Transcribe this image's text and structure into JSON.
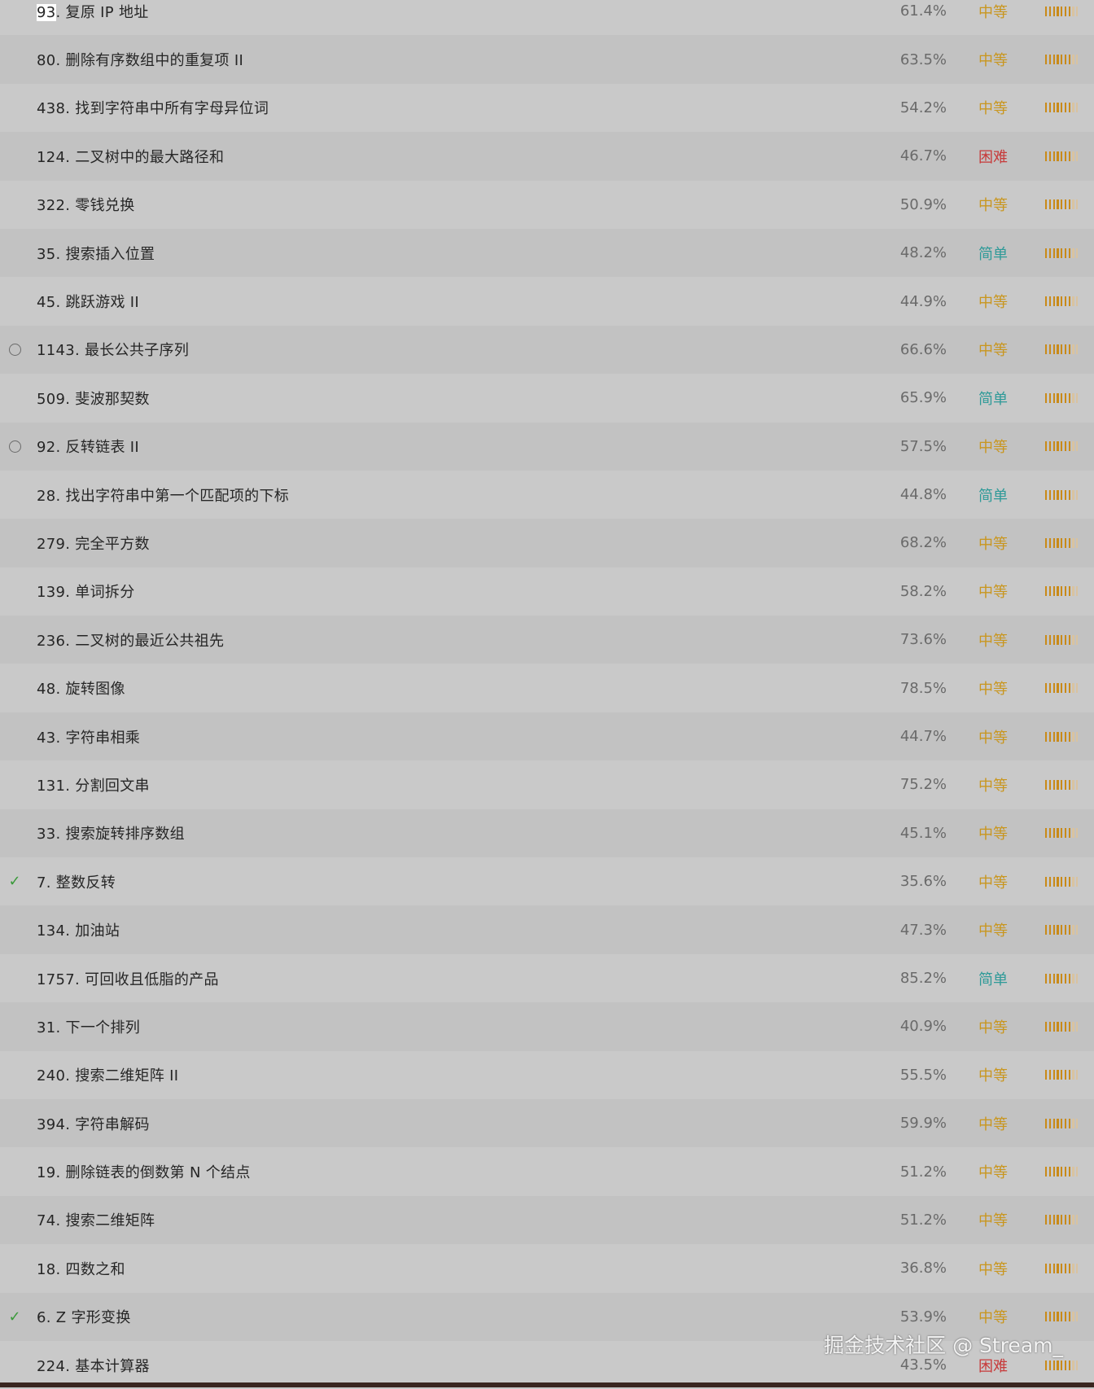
{
  "colors": {
    "medium": "#c9961e",
    "easy": "#2e9a98",
    "hard": "#c73a3a",
    "check": "#3a9a3a"
  },
  "problems": [
    {
      "title": "93. 复原 IP 地址",
      "num": "93",
      "rest": ". 复原 IP 地址",
      "rate": "61.4%",
      "difficulty": "中等",
      "level": "medium",
      "status": ""
    },
    {
      "title": "80. 删除有序数组中的重复项 II",
      "rate": "63.5%",
      "difficulty": "中等",
      "level": "medium",
      "status": ""
    },
    {
      "title": "438. 找到字符串中所有字母异位词",
      "rate": "54.2%",
      "difficulty": "中等",
      "level": "medium",
      "status": ""
    },
    {
      "title": "124. 二叉树中的最大路径和",
      "rate": "46.7%",
      "difficulty": "困难",
      "level": "hard",
      "status": ""
    },
    {
      "title": "322. 零钱兑换",
      "rate": "50.9%",
      "difficulty": "中等",
      "level": "medium",
      "status": ""
    },
    {
      "title": "35. 搜索插入位置",
      "rate": "48.2%",
      "difficulty": "简单",
      "level": "easy",
      "status": ""
    },
    {
      "title": "45. 跳跃游戏 II",
      "rate": "44.9%",
      "difficulty": "中等",
      "level": "medium",
      "status": ""
    },
    {
      "title": "1143. 最长公共子序列",
      "rate": "66.6%",
      "difficulty": "中等",
      "level": "medium",
      "status": "attempted"
    },
    {
      "title": "509. 斐波那契数",
      "rate": "65.9%",
      "difficulty": "简单",
      "level": "easy",
      "status": ""
    },
    {
      "title": "92. 反转链表 II",
      "rate": "57.5%",
      "difficulty": "中等",
      "level": "medium",
      "status": "attempted"
    },
    {
      "title": "28. 找出字符串中第一个匹配项的下标",
      "rate": "44.8%",
      "difficulty": "简单",
      "level": "easy",
      "status": ""
    },
    {
      "title": "279. 完全平方数",
      "rate": "68.2%",
      "difficulty": "中等",
      "level": "medium",
      "status": ""
    },
    {
      "title": "139. 单词拆分",
      "rate": "58.2%",
      "difficulty": "中等",
      "level": "medium",
      "status": ""
    },
    {
      "title": "236. 二叉树的最近公共祖先",
      "rate": "73.6%",
      "difficulty": "中等",
      "level": "medium",
      "status": ""
    },
    {
      "title": "48. 旋转图像",
      "rate": "78.5%",
      "difficulty": "中等",
      "level": "medium",
      "status": ""
    },
    {
      "title": "43. 字符串相乘",
      "rate": "44.7%",
      "difficulty": "中等",
      "level": "medium",
      "status": ""
    },
    {
      "title": "131. 分割回文串",
      "rate": "75.2%",
      "difficulty": "中等",
      "level": "medium",
      "status": ""
    },
    {
      "title": "33. 搜索旋转排序数组",
      "rate": "45.1%",
      "difficulty": "中等",
      "level": "medium",
      "status": ""
    },
    {
      "title": "7. 整数反转",
      "rate": "35.6%",
      "difficulty": "中等",
      "level": "medium",
      "status": "solved"
    },
    {
      "title": "134. 加油站",
      "rate": "47.3%",
      "difficulty": "中等",
      "level": "medium",
      "status": ""
    },
    {
      "title": "1757. 可回收且低脂的产品",
      "rate": "85.2%",
      "difficulty": "简单",
      "level": "easy",
      "status": ""
    },
    {
      "title": "31. 下一个排列",
      "rate": "40.9%",
      "difficulty": "中等",
      "level": "medium",
      "status": ""
    },
    {
      "title": "240. 搜索二维矩阵 II",
      "rate": "55.5%",
      "difficulty": "中等",
      "level": "medium",
      "status": ""
    },
    {
      "title": "394. 字符串解码",
      "rate": "59.9%",
      "difficulty": "中等",
      "level": "medium",
      "status": ""
    },
    {
      "title": "19. 删除链表的倒数第 N 个结点",
      "rate": "51.2%",
      "difficulty": "中等",
      "level": "medium",
      "status": ""
    },
    {
      "title": "74. 搜索二维矩阵",
      "rate": "51.2%",
      "difficulty": "中等",
      "level": "medium",
      "status": ""
    },
    {
      "title": "18. 四数之和",
      "rate": "36.8%",
      "difficulty": "中等",
      "level": "medium",
      "status": ""
    },
    {
      "title": "6. Z 字形变换",
      "rate": "53.9%",
      "difficulty": "中等",
      "level": "medium",
      "status": "solved"
    },
    {
      "title": "224. 基本计算器",
      "rate": "43.5%",
      "difficulty": "困难",
      "level": "hard",
      "status": ""
    }
  ],
  "frequency": {
    "filled": 7,
    "total": 9
  },
  "watermark": "掘金技术社区 @ Stream_"
}
